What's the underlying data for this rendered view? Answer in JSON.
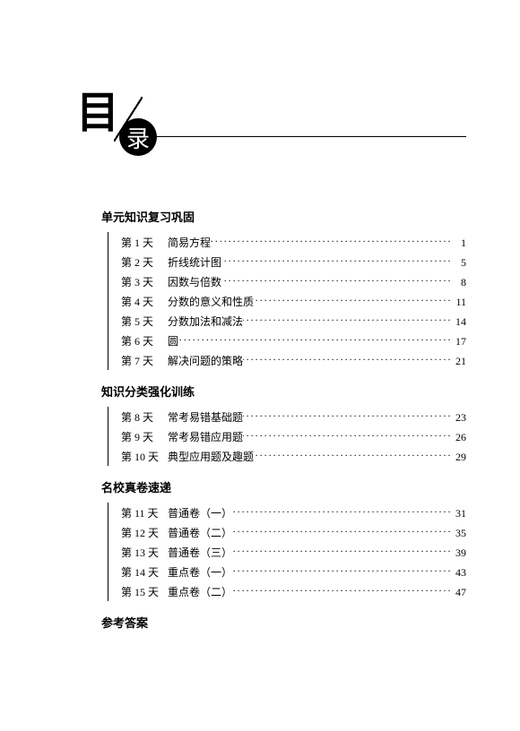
{
  "header": {
    "char1": "目",
    "char2": "录"
  },
  "sections": [
    {
      "title": "单元知识复习巩固",
      "entries": [
        {
          "day": "第 1 天",
          "topic": "简易方程",
          "page": "1"
        },
        {
          "day": "第 2 天",
          "topic": "折线统计图",
          "page": "5"
        },
        {
          "day": "第 3 天",
          "topic": "因数与倍数",
          "page": "8"
        },
        {
          "day": "第 4 天",
          "topic": "分数的意义和性质",
          "page": "11"
        },
        {
          "day": "第 5 天",
          "topic": "分数加法和减法",
          "page": "14"
        },
        {
          "day": "第 6 天",
          "topic": "圆",
          "page": "17"
        },
        {
          "day": "第 7 天",
          "topic": "解决问题的策略",
          "page": "21"
        }
      ]
    },
    {
      "title": "知识分类强化训练",
      "entries": [
        {
          "day": "第 8 天",
          "topic": "常考易错基础题",
          "page": "23"
        },
        {
          "day": "第 9 天",
          "topic": "常考易错应用题",
          "page": "26"
        },
        {
          "day": "第 10 天",
          "topic": "典型应用题及趣题",
          "page": "29"
        }
      ]
    },
    {
      "title": "名校真卷速递",
      "entries": [
        {
          "day": "第 11 天",
          "topic": "普通卷（一）",
          "page": "31"
        },
        {
          "day": "第 12 天",
          "topic": "普通卷（二）",
          "page": "35"
        },
        {
          "day": "第 13 天",
          "topic": "普通卷（三）",
          "page": "39"
        },
        {
          "day": "第 14 天",
          "topic": "重点卷（一）",
          "page": "43"
        },
        {
          "day": "第 15 天",
          "topic": "重点卷（二）",
          "page": "47"
        }
      ]
    }
  ],
  "answer_section": "参考答案"
}
